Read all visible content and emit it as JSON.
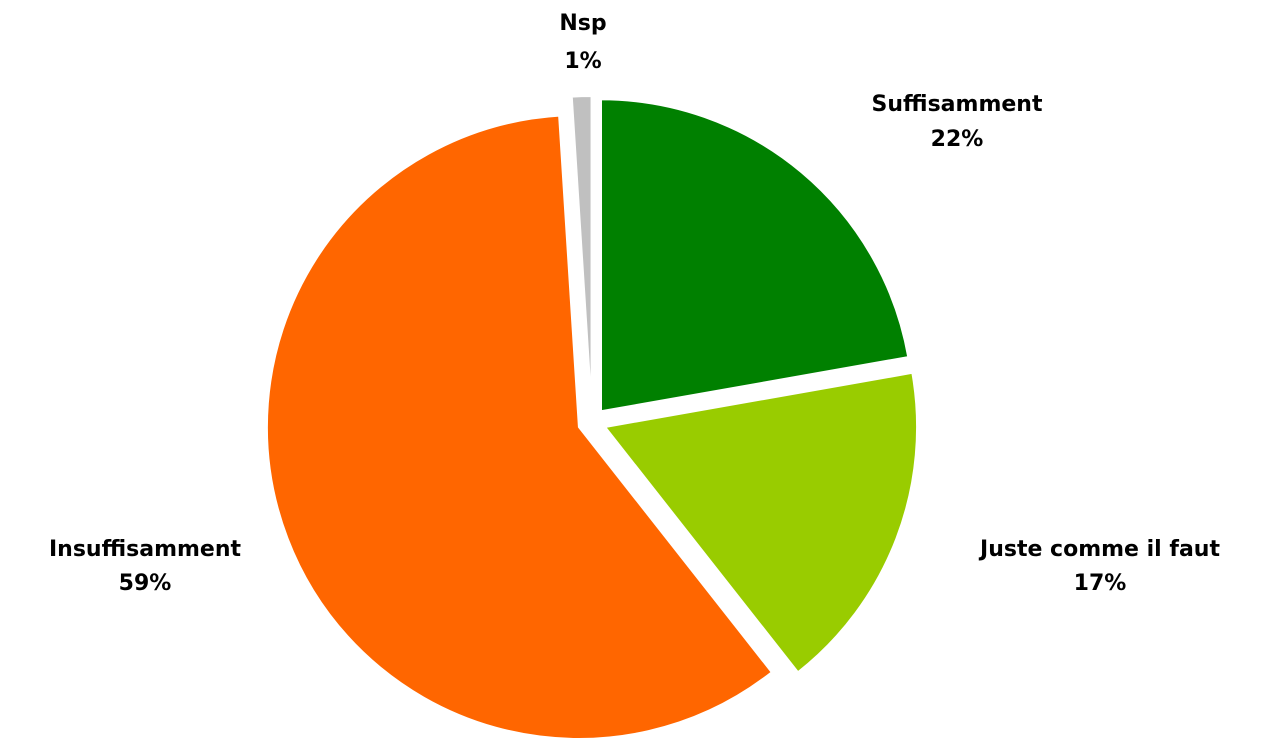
{
  "chart_data": {
    "type": "pie",
    "categories": [
      "Suffisamment",
      "Juste comme il faut",
      "Insuffisamment",
      "Nsp"
    ],
    "values": [
      22,
      17,
      59,
      1
    ],
    "value_labels": [
      "22%",
      "17%",
      "59%",
      "1%"
    ],
    "colors": [
      "#008000",
      "#99cc00",
      "#ff6600",
      "#c0c0c0"
    ]
  }
}
